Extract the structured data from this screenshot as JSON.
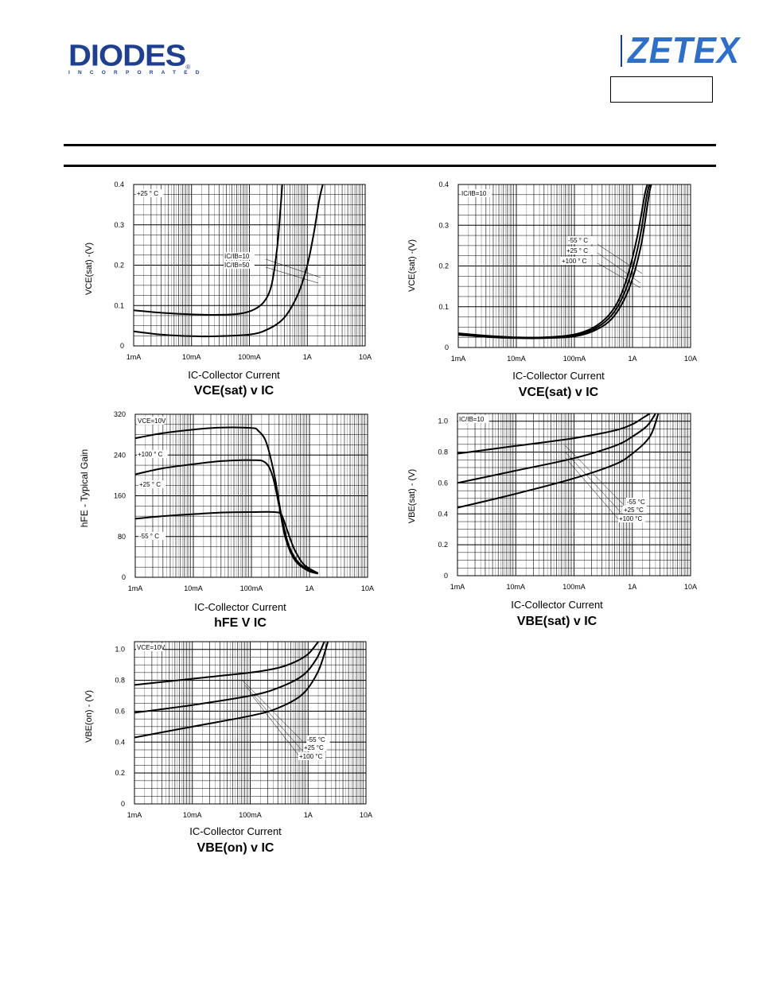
{
  "header": {
    "diodes_logo": "DIODES",
    "diodes_sub": "INCORPORATED",
    "zetex_logo": "ZETEX"
  },
  "colors": {
    "brand_blue": "#1f3f8f",
    "zetex_blue": "#2f6fc8",
    "grid": "#000000"
  },
  "chart_data": [
    {
      "id": "vce_sat_ic_1",
      "type": "line",
      "title": "VCE(sat) v IC",
      "xlabel": "IC-Collector Current",
      "ylabel": "VCE(sat) -(V)",
      "xscale": "log",
      "xlim": [
        0.001,
        10
      ],
      "ylim": [
        0,
        0.4
      ],
      "yticks": [
        0,
        0.1,
        0.2,
        0.3,
        0.4
      ],
      "ytick_labels": [
        "0",
        "0.1",
        "0.2",
        "0.3",
        "0.4"
      ],
      "xtick_labels": [
        "1mA",
        "10mA",
        "100mA",
        "1A",
        "10A"
      ],
      "annotations": [
        "+25 ° C",
        "IC/IB=10",
        "IC/IB=50"
      ],
      "series": [
        {
          "name": "IC/IB=10",
          "points": [
            [
              0.001,
              0.036
            ],
            [
              0.003,
              0.028
            ],
            [
              0.01,
              0.024
            ],
            [
              0.03,
              0.024
            ],
            [
              0.1,
              0.028
            ],
            [
              0.2,
              0.04
            ],
            [
              0.4,
              0.07
            ],
            [
              0.7,
              0.13
            ],
            [
              1.0,
              0.2
            ],
            [
              1.3,
              0.28
            ],
            [
              1.6,
              0.36
            ],
            [
              1.85,
              0.4
            ]
          ]
        },
        {
          "name": "IC/IB=50",
          "points": [
            [
              0.001,
              0.088
            ],
            [
              0.003,
              0.082
            ],
            [
              0.01,
              0.078
            ],
            [
              0.03,
              0.077
            ],
            [
              0.07,
              0.08
            ],
            [
              0.12,
              0.09
            ],
            [
              0.18,
              0.11
            ],
            [
              0.24,
              0.15
            ],
            [
              0.3,
              0.24
            ],
            [
              0.34,
              0.33
            ],
            [
              0.37,
              0.4
            ]
          ]
        }
      ]
    },
    {
      "id": "vce_sat_ic_2",
      "type": "line",
      "title": "VCE(sat) v IC",
      "xlabel": "IC-Collector Current",
      "ylabel": "VCE(sat) -(V)",
      "xscale": "log",
      "xlim": [
        0.001,
        10
      ],
      "ylim": [
        0,
        0.4
      ],
      "yticks": [
        0,
        0.1,
        0.2,
        0.3,
        0.4
      ],
      "ytick_labels": [
        "0",
        "0.1",
        "0.2",
        "0.3",
        "0.4"
      ],
      "xtick_labels": [
        "1mA",
        "10mA",
        "100mA",
        "1A",
        "10A"
      ],
      "annotations": [
        "IC/IB=10",
        "-55 ° C",
        "+25 ° C",
        "+100 ° C"
      ],
      "series": [
        {
          "name": "-55 °C",
          "points": [
            [
              0.001,
              0.035
            ],
            [
              0.003,
              0.029
            ],
            [
              0.01,
              0.025
            ],
            [
              0.03,
              0.025
            ],
            [
              0.1,
              0.032
            ],
            [
              0.25,
              0.055
            ],
            [
              0.5,
              0.1
            ],
            [
              0.8,
              0.17
            ],
            [
              1.2,
              0.27
            ],
            [
              1.6,
              0.37
            ],
            [
              1.8,
              0.4
            ]
          ]
        },
        {
          "name": "+25 °C",
          "points": [
            [
              0.001,
              0.033
            ],
            [
              0.003,
              0.027
            ],
            [
              0.01,
              0.024
            ],
            [
              0.03,
              0.024
            ],
            [
              0.1,
              0.03
            ],
            [
              0.25,
              0.05
            ],
            [
              0.5,
              0.09
            ],
            [
              0.85,
              0.16
            ],
            [
              1.3,
              0.26
            ],
            [
              1.75,
              0.37
            ],
            [
              1.95,
              0.4
            ]
          ]
        },
        {
          "name": "+100 °C",
          "points": [
            [
              0.001,
              0.031
            ],
            [
              0.003,
              0.026
            ],
            [
              0.01,
              0.023
            ],
            [
              0.03,
              0.023
            ],
            [
              0.1,
              0.027
            ],
            [
              0.25,
              0.045
            ],
            [
              0.5,
              0.08
            ],
            [
              0.9,
              0.15
            ],
            [
              1.4,
              0.25
            ],
            [
              1.9,
              0.37
            ],
            [
              2.1,
              0.4
            ]
          ]
        }
      ]
    },
    {
      "id": "hfe_ic",
      "type": "line",
      "title": "hFE V IC",
      "xlabel": "IC-Collector Current",
      "ylabel": "hFE - Typical Gain",
      "xscale": "log",
      "xlim": [
        0.001,
        10
      ],
      "ylim": [
        0,
        320
      ],
      "yticks": [
        0,
        80,
        160,
        240,
        320
      ],
      "ytick_labels": [
        "0",
        "80",
        "160",
        "240",
        "320"
      ],
      "xtick_labels": [
        "1mA",
        "10mA",
        "100mA",
        "1A",
        "10A"
      ],
      "annotations": [
        "VCE=10V",
        "+100 ° C",
        "+25 ° C",
        "-55 ° C"
      ],
      "series": [
        {
          "name": "+100 °C",
          "points": [
            [
              0.001,
              273
            ],
            [
              0.003,
              283
            ],
            [
              0.01,
              290
            ],
            [
              0.03,
              294
            ],
            [
              0.1,
              293
            ],
            [
              0.13,
              288
            ],
            [
              0.18,
              265
            ],
            [
              0.25,
              200
            ],
            [
              0.33,
              120
            ],
            [
              0.45,
              60
            ],
            [
              0.7,
              25
            ],
            [
              1.4,
              8
            ]
          ]
        },
        {
          "name": "+25 °C",
          "points": [
            [
              0.001,
              202
            ],
            [
              0.003,
              214
            ],
            [
              0.01,
              222
            ],
            [
              0.03,
              228
            ],
            [
              0.1,
              230
            ],
            [
              0.17,
              226
            ],
            [
              0.23,
              200
            ],
            [
              0.3,
              140
            ],
            [
              0.38,
              80
            ],
            [
              0.55,
              35
            ],
            [
              0.9,
              14
            ],
            [
              1.4,
              7
            ]
          ]
        },
        {
          "name": "-55 °C",
          "points": [
            [
              0.001,
              115
            ],
            [
              0.003,
              120
            ],
            [
              0.01,
              124
            ],
            [
              0.03,
              127
            ],
            [
              0.1,
              128
            ],
            [
              0.25,
              128
            ],
            [
              0.33,
              122
            ],
            [
              0.42,
              90
            ],
            [
              0.55,
              55
            ],
            [
              0.8,
              25
            ],
            [
              1.4,
              8
            ]
          ]
        }
      ]
    },
    {
      "id": "vbe_sat_ic",
      "type": "line",
      "title": "VBE(sat) v IC",
      "xlabel": "IC-Collector Current",
      "ylabel": "VBE(sat) - (V)",
      "xscale": "log",
      "xlim": [
        0.001,
        10
      ],
      "ylim": [
        0,
        1.05
      ],
      "yticks": [
        0,
        0.2,
        0.4,
        0.6,
        0.8,
        1.0
      ],
      "ytick_labels": [
        "0",
        "0.2",
        "0.4",
        "0.6",
        "0.8",
        "1.0"
      ],
      "xtick_labels": [
        "1mA",
        "10mA",
        "100mA",
        "1A",
        "10A"
      ],
      "annotations": [
        "IC/IB=10",
        "-55 °C",
        "+25 °C",
        "+100 °C"
      ],
      "series": [
        {
          "name": "-55 °C",
          "points": [
            [
              0.001,
              0.79
            ],
            [
              0.01,
              0.84
            ],
            [
              0.1,
              0.89
            ],
            [
              0.5,
              0.94
            ],
            [
              1.0,
              0.98
            ],
            [
              1.5,
              1.02
            ],
            [
              2.0,
              1.05
            ]
          ]
        },
        {
          "name": "+25 °C",
          "points": [
            [
              0.001,
              0.6
            ],
            [
              0.01,
              0.68
            ],
            [
              0.1,
              0.76
            ],
            [
              0.5,
              0.84
            ],
            [
              1.0,
              0.9
            ],
            [
              1.8,
              0.97
            ],
            [
              2.5,
              1.05
            ]
          ]
        },
        {
          "name": "+100 °C",
          "points": [
            [
              0.001,
              0.44
            ],
            [
              0.01,
              0.53
            ],
            [
              0.1,
              0.63
            ],
            [
              0.5,
              0.72
            ],
            [
              1.0,
              0.79
            ],
            [
              2.0,
              0.9
            ],
            [
              2.8,
              1.05
            ]
          ]
        }
      ]
    },
    {
      "id": "vbe_on_ic",
      "type": "line",
      "title": "VBE(on) v IC",
      "xlabel": "IC-Collector Current",
      "ylabel": "VBE(on) - (V)",
      "xscale": "log",
      "xlim": [
        0.001,
        10
      ],
      "ylim": [
        0,
        1.05
      ],
      "yticks": [
        0,
        0.2,
        0.4,
        0.6,
        0.8,
        1.0
      ],
      "ytick_labels": [
        "0",
        "0.2",
        "0.4",
        "0.6",
        "0.8",
        "1.0"
      ],
      "xtick_labels": [
        "1mA",
        "10mA",
        "100mA",
        "1A",
        "10A"
      ],
      "annotations": [
        "VCE=10V",
        "-55 °C",
        "+25 °C",
        "+100 °C"
      ],
      "series": [
        {
          "name": "-55 °C",
          "points": [
            [
              0.001,
              0.77
            ],
            [
              0.01,
              0.81
            ],
            [
              0.1,
              0.85
            ],
            [
              0.3,
              0.88
            ],
            [
              0.6,
              0.92
            ],
            [
              1.0,
              0.97
            ],
            [
              1.5,
              1.05
            ]
          ]
        },
        {
          "name": "+25 °C",
          "points": [
            [
              0.001,
              0.59
            ],
            [
              0.01,
              0.64
            ],
            [
              0.1,
              0.7
            ],
            [
              0.3,
              0.75
            ],
            [
              0.8,
              0.83
            ],
            [
              1.4,
              0.94
            ],
            [
              1.9,
              1.05
            ]
          ]
        },
        {
          "name": "+100 °C",
          "points": [
            [
              0.001,
              0.43
            ],
            [
              0.01,
              0.5
            ],
            [
              0.1,
              0.57
            ],
            [
              0.3,
              0.62
            ],
            [
              0.8,
              0.71
            ],
            [
              1.5,
              0.86
            ],
            [
              2.2,
              1.05
            ]
          ]
        }
      ]
    }
  ]
}
